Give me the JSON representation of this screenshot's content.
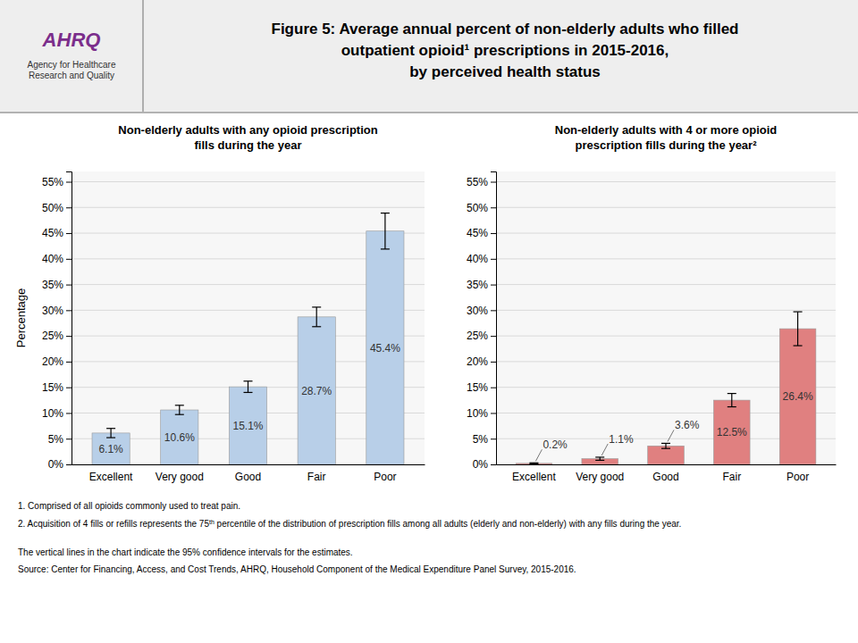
{
  "title": "Figure 5: Average annual percent of non-elderly adults who filled\noutpatient opioid¹ prescriptions in 2015-2016,\nby perceived health status",
  "logo_text": [
    "AHRQ",
    "Agency for Healthcare\nResearch and Quality"
  ],
  "footnotes": [
    "1.   Comprised of all opioids commonly used to treat pain.",
    [
      "2.   Acquisition of 4 fills or refills represents the 75",
      "th",
      " percentile of the distribution of prescription fills among all adults (elderly and non-elderly)  with any fills during the year."
    ],
    "The vertical lines in the chart indicate the 95% confidence intervals for the estimates.",
    "Source: Center for Financing, Access, and Cost Trends, AHRQ, Household Component of the Medical Expenditure Panel Survey,  2015-2016."
  ],
  "chart_data": [
    {
      "type": "bar",
      "subtitle": "Non-elderly adults with any opioid prescription\nfills during the year",
      "categories": [
        "Excellent",
        "Very good",
        "Good",
        "Fair",
        "Poor"
      ],
      "values": [
        6.1,
        10.6,
        15.1,
        28.7,
        45.4
      ],
      "errors": [
        0.9,
        0.9,
        1.1,
        1.9,
        3.5
      ],
      "value_labels": [
        "6.1%",
        "10.6%",
        "15.1%",
        "28.7%",
        "45.4%"
      ],
      "data_labels": true,
      "color": "#b8cfe8",
      "ylabel": "Percentage",
      "ylim": [
        0,
        57
      ],
      "yticks": [
        {
          "value": 0,
          "label": "0%"
        },
        {
          "value": 5,
          "label": "5%"
        },
        {
          "value": 10,
          "label": "10%"
        },
        {
          "value": 15,
          "label": "15%"
        },
        {
          "value": 20,
          "label": "20%"
        },
        {
          "value": 25,
          "label": "25%"
        },
        {
          "value": 30,
          "label": "30%"
        },
        {
          "value": 35,
          "label": "35%"
        },
        {
          "value": 40,
          "label": "40%"
        },
        {
          "value": 45,
          "label": "45%"
        },
        {
          "value": 50,
          "label": "50%"
        },
        {
          "value": 55,
          "label": "55%"
        }
      ],
      "grid": true
    },
    {
      "type": "bar",
      "subtitle": "Non-elderly adults with 4 or more opioid\nprescription fills during the year²",
      "categories": [
        "Excellent",
        "Very good",
        "Good",
        "Fair",
        "Poor"
      ],
      "values": [
        0.2,
        1.1,
        3.6,
        12.5,
        26.4
      ],
      "errors": [
        0.1,
        0.3,
        0.5,
        1.3,
        3.3
      ],
      "value_labels": [
        "0.2%",
        "1.1%",
        "3.6%",
        "12.5%",
        "26.4%"
      ],
      "data_labels": true,
      "color": "#e08080",
      "ylim": [
        0,
        57
      ],
      "yticks": [
        {
          "value": 0,
          "label": "0%"
        },
        {
          "value": 5,
          "label": "5%"
        },
        {
          "value": 10,
          "label": "10%"
        },
        {
          "value": 15,
          "label": "15%"
        },
        {
          "value": 20,
          "label": "20%"
        },
        {
          "value": 25,
          "label": "25%"
        },
        {
          "value": 30,
          "label": "30%"
        },
        {
          "value": 35,
          "label": "35%"
        },
        {
          "value": 40,
          "label": "40%"
        },
        {
          "value": 45,
          "label": "45%"
        },
        {
          "value": 50,
          "label": "50%"
        },
        {
          "value": 55,
          "label": "55%"
        }
      ],
      "grid": true
    }
  ]
}
